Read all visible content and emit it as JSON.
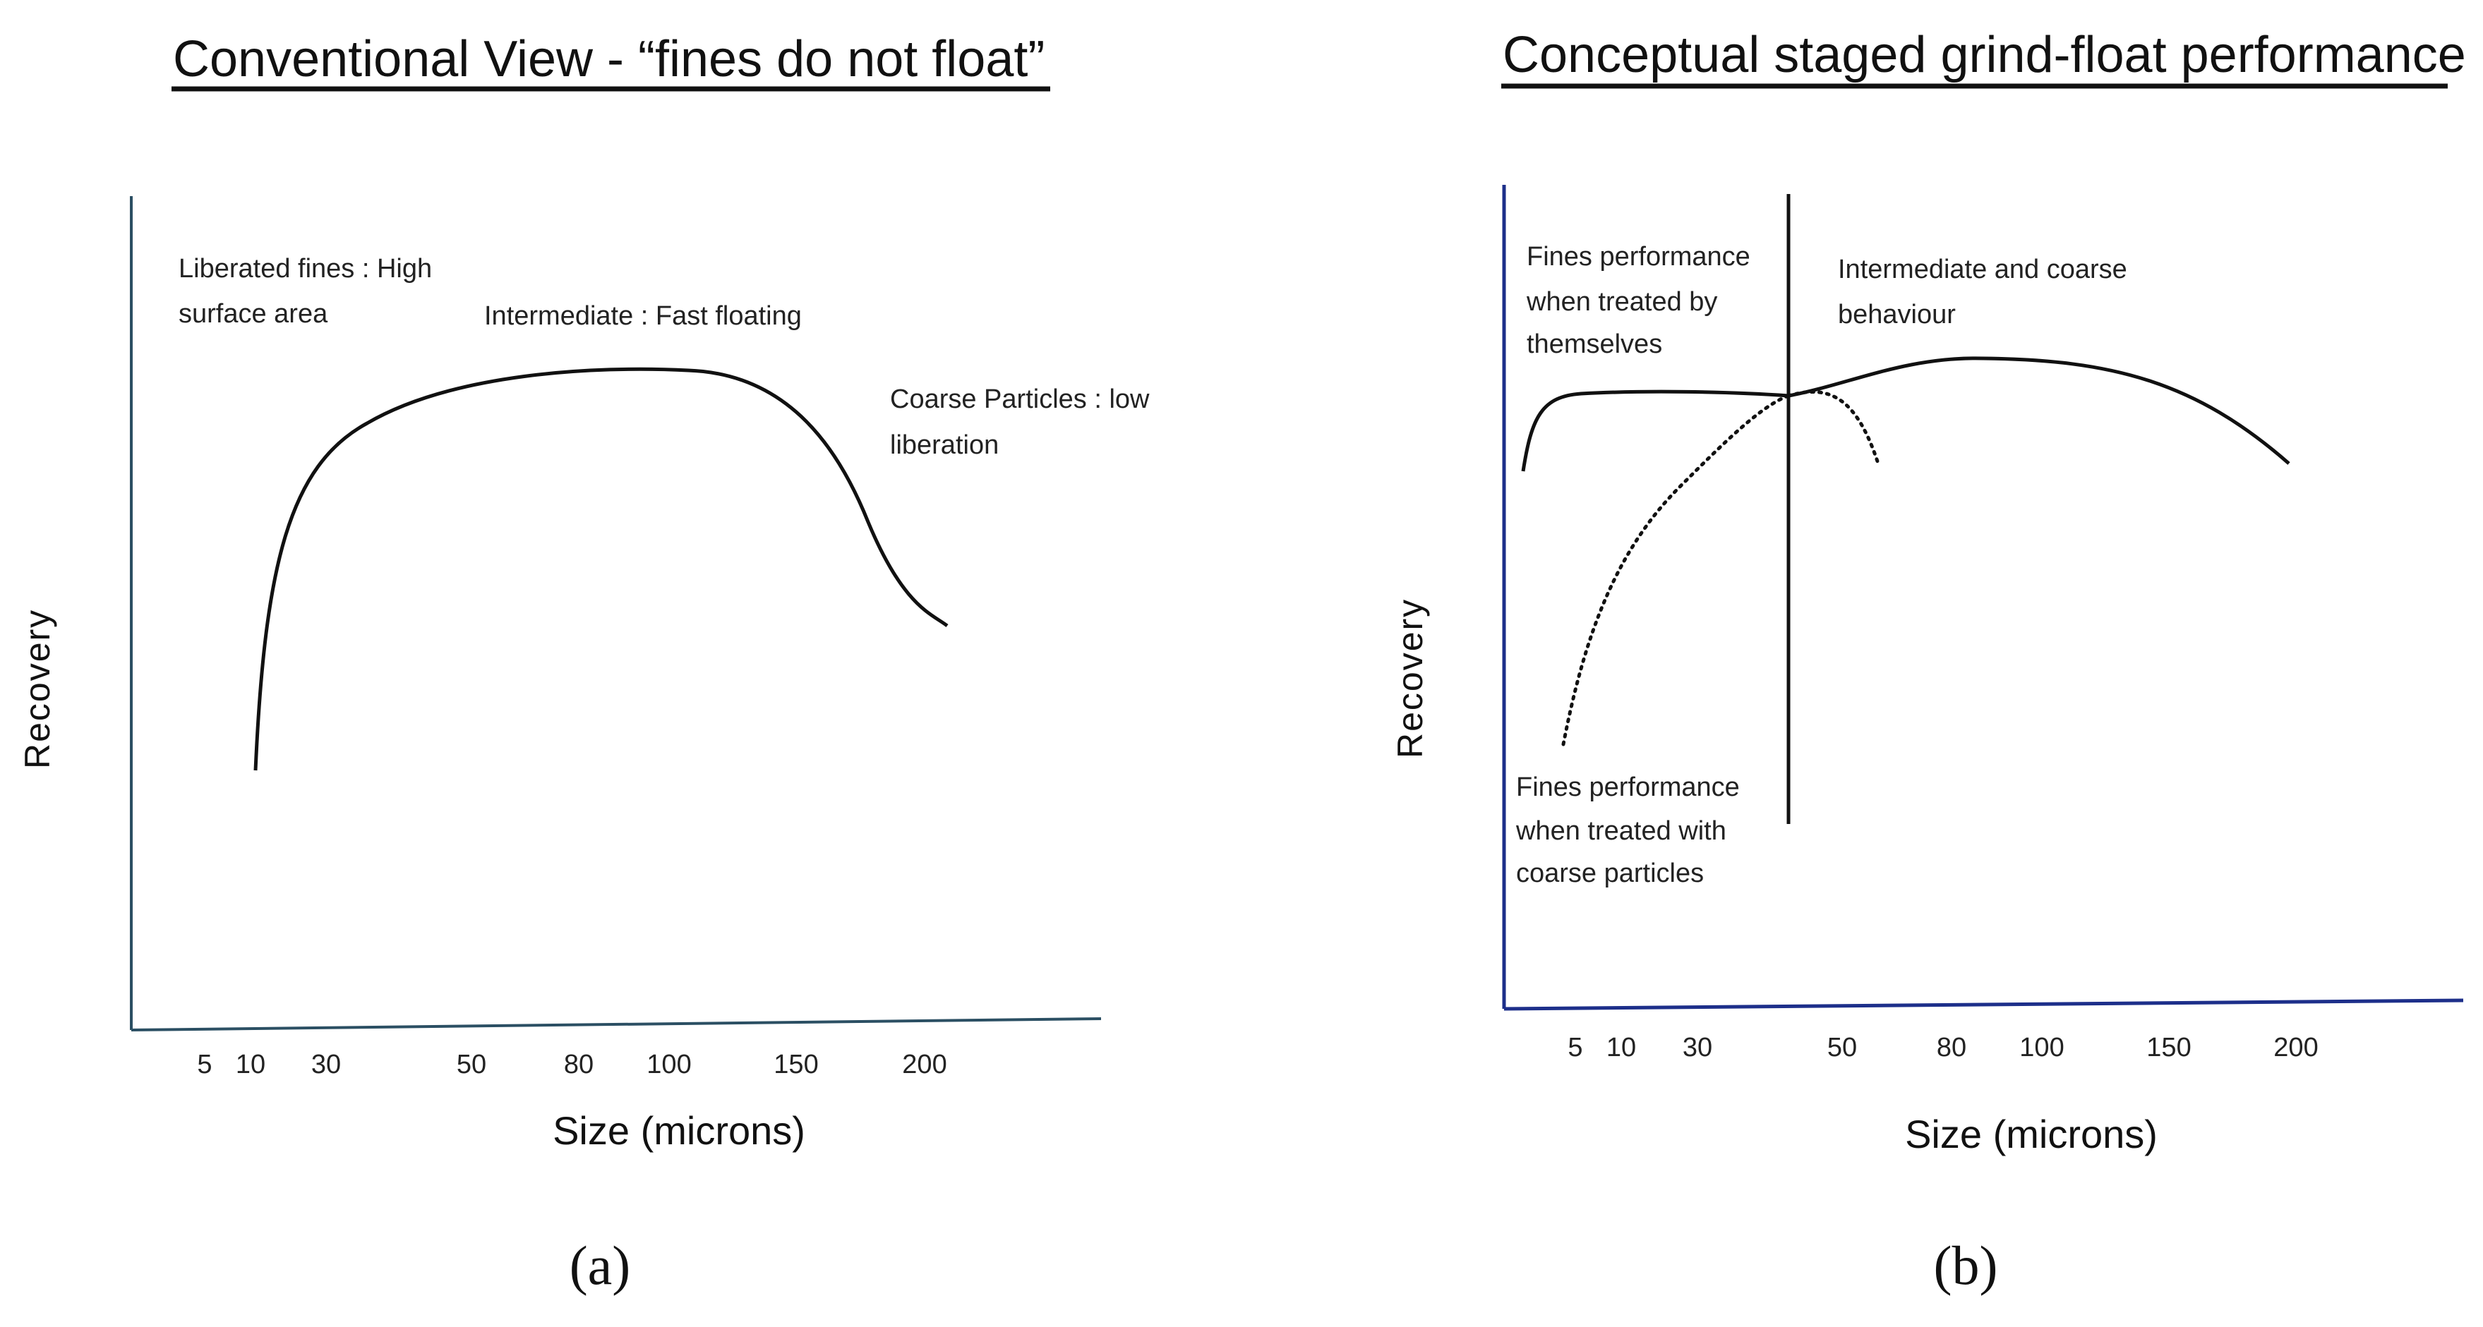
{
  "panels": [
    {
      "id": "a",
      "title": "Conventional View - “fines do not float”",
      "y_label": "Recovery",
      "x_label": "Size (microns)",
      "x_ticks": [
        "5",
        "10",
        "30",
        "50",
        "80",
        "100",
        "150",
        "200"
      ],
      "annotations": {
        "fines": [
          "Liberated fines : High",
          "surface area"
        ],
        "intermediate": [
          "Intermediate : Fast floating"
        ],
        "coarse": [
          "Coarse Particles : low",
          "liberation"
        ]
      },
      "panel_label": "(a)",
      "axis_color": "#2b4f63"
    },
    {
      "id": "b",
      "title": "Conceptual staged grind-float performance",
      "y_label": "Recovery",
      "x_label": "Size (microns)",
      "x_ticks": [
        "5",
        "10",
        "30",
        "50",
        "80",
        "100",
        "150",
        "200"
      ],
      "annotations": {
        "fines_alone": [
          "Fines performance",
          "when treated by",
          "themselves"
        ],
        "inter_coarse": [
          "Intermediate and coarse",
          "behaviour"
        ],
        "fines_with_coarse": [
          "Fines performance",
          "when treated with",
          "coarse particles"
        ]
      },
      "panel_label": "(b)",
      "axis_color": "#1d2f8a"
    }
  ]
}
